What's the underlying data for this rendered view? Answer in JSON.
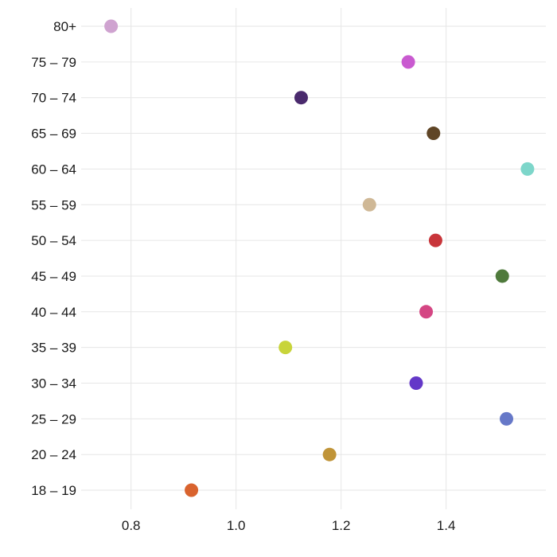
{
  "chart_data": {
    "type": "scatter",
    "title": "",
    "xlabel": "",
    "ylabel": "",
    "xlim": [
      0.705,
      1.59
    ],
    "x_ticks": [
      0.8,
      1.0,
      1.2,
      1.4
    ],
    "x_tick_labels": [
      "0.8",
      "1.0",
      "1.2",
      "1.4"
    ],
    "grid": true,
    "categories": [
      "18 – 19",
      "20 – 24",
      "25 – 29",
      "30 – 34",
      "35 – 39",
      "40 – 44",
      "45 – 49",
      "50 – 54",
      "55 – 59",
      "60 – 64",
      "65 – 69",
      "70 – 74",
      "75 – 79",
      "80+"
    ],
    "values": [
      0.915,
      1.178,
      1.515,
      1.343,
      1.094,
      1.362,
      1.507,
      1.38,
      1.254,
      1.555,
      1.376,
      1.124,
      1.328,
      0.762
    ],
    "colors": [
      "#d9632e",
      "#c09438",
      "#6678c8",
      "#6438c8",
      "#c8d43a",
      "#d44683",
      "#4f7a3c",
      "#c8353a",
      "#cfb896",
      "#7dd6ca",
      "#5f4526",
      "#4a2a6d",
      "#c95ad0",
      "#cfa3d0"
    ]
  }
}
